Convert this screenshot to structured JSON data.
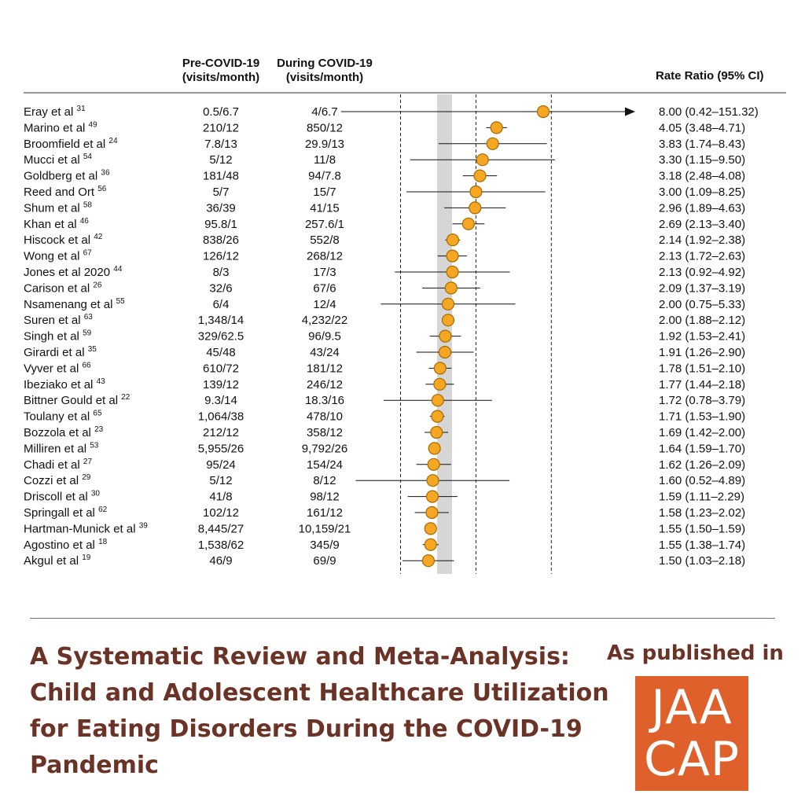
{
  "chart_data": {
    "type": "forest",
    "headers": {
      "pre_line1": "Pre-COVID-19",
      "pre_line2": "(visits/month)",
      "during_line1": "During COVID-19",
      "during_line2": "(visits/month)",
      "ratio": "Rate Ratio (95% CI)"
    },
    "x_axis": "log",
    "rows": [
      {
        "study": "Eray et al",
        "ref": "31",
        "pre": "0.5/6.7",
        "during": "4/6.7",
        "rr": 8.0,
        "lo": 0.42,
        "hi": 151.32,
        "ci_text": "8.00 (0.42–151.32)",
        "arrow": true
      },
      {
        "study": "Marino et al",
        "ref": "49",
        "pre": "210/12",
        "during": "850/12",
        "rr": 4.05,
        "lo": 3.48,
        "hi": 4.71,
        "ci_text": "4.05 (3.48–4.71)"
      },
      {
        "study": "Broomfield et al",
        "ref": "24",
        "pre": "7.8/13",
        "during": "29.9/13",
        "rr": 3.83,
        "lo": 1.74,
        "hi": 8.43,
        "ci_text": "3.83 (1.74–8.43)"
      },
      {
        "study": "Mucci et al",
        "ref": "54",
        "pre": "5/12",
        "during": "11/8",
        "rr": 3.3,
        "lo": 1.15,
        "hi": 9.5,
        "ci_text": "3.30 (1.15–9.50)"
      },
      {
        "study": "Goldberg et al",
        "ref": "36",
        "pre": "181/48",
        "during": "94/7.8",
        "rr": 3.18,
        "lo": 2.48,
        "hi": 4.08,
        "ci_text": "3.18 (2.48–4.08)"
      },
      {
        "study": "Reed and Ort",
        "ref": "56",
        "pre": "5/7",
        "during": "15/7",
        "rr": 3.0,
        "lo": 1.09,
        "hi": 8.25,
        "ci_text": "3.00 (1.09–8.25)"
      },
      {
        "study": "Shum et al",
        "ref": "58",
        "pre": "36/39",
        "during": "41/15",
        "rr": 2.96,
        "lo": 1.89,
        "hi": 4.63,
        "ci_text": "2.96 (1.89–4.63)"
      },
      {
        "study": "Khan et al",
        "ref": "46",
        "pre": "95.8/1",
        "during": "257.6/1",
        "rr": 2.69,
        "lo": 2.13,
        "hi": 3.4,
        "ci_text": "2.69 (2.13–3.40)"
      },
      {
        "study": "Hiscock et al",
        "ref": "42",
        "pre": "838/26",
        "during": "552/8",
        "rr": 2.14,
        "lo": 1.92,
        "hi": 2.38,
        "ci_text": "2.14 (1.92–2.38)"
      },
      {
        "study": "Wong et al",
        "ref": "67",
        "pre": "126/12",
        "during": "268/12",
        "rr": 2.13,
        "lo": 1.72,
        "hi": 2.63,
        "ci_text": "2.13 (1.72–2.63)"
      },
      {
        "study": "Jones et al 2020",
        "ref": "44",
        "pre": "8/3",
        "during": "17/3",
        "rr": 2.13,
        "lo": 0.92,
        "hi": 4.92,
        "ci_text": "2.13 (0.92–4.92)"
      },
      {
        "study": "Carison et al",
        "ref": "26",
        "pre": "32/6",
        "during": "67/6",
        "rr": 2.09,
        "lo": 1.37,
        "hi": 3.19,
        "ci_text": "2.09 (1.37–3.19)"
      },
      {
        "study": "Nsamenang et al",
        "ref": "55",
        "pre": "6/4",
        "during": "12/4",
        "rr": 2.0,
        "lo": 0.75,
        "hi": 5.33,
        "ci_text": "2.00 (0.75–5.33)"
      },
      {
        "study": "Suren et al",
        "ref": "63",
        "pre": "1,348/14",
        "during": "4,232/22",
        "rr": 2.0,
        "lo": 1.88,
        "hi": 2.12,
        "ci_text": "2.00 (1.88–2.12)"
      },
      {
        "study": "Singh et al",
        "ref": "59",
        "pre": "329/62.5",
        "during": "96/9.5",
        "rr": 1.92,
        "lo": 1.53,
        "hi": 2.41,
        "ci_text": "1.92 (1.53–2.41)"
      },
      {
        "study": "Girardi et al",
        "ref": "35",
        "pre": "45/48",
        "during": "43/24",
        "rr": 1.91,
        "lo": 1.26,
        "hi": 2.9,
        "ci_text": "1.91 (1.26–2.90)"
      },
      {
        "study": "Vyver et al",
        "ref": "66",
        "pre": "610/72",
        "during": "181/12",
        "rr": 1.78,
        "lo": 1.51,
        "hi": 2.1,
        "ci_text": "1.78 (1.51–2.10)"
      },
      {
        "study": "Ibeziako et al",
        "ref": "43",
        "pre": "139/12",
        "during": "246/12",
        "rr": 1.77,
        "lo": 1.44,
        "hi": 2.18,
        "ci_text": "1.77 (1.44–2.18)"
      },
      {
        "study": "Bittner Gould et al",
        "ref": "22",
        "pre": "9.3/14",
        "during": "18.3/16",
        "rr": 1.72,
        "lo": 0.78,
        "hi": 3.79,
        "ci_text": "1.72 (0.78–3.79)"
      },
      {
        "study": "Toulany et al",
        "ref": "65",
        "pre": "1,064/38",
        "during": "478/10",
        "rr": 1.71,
        "lo": 1.53,
        "hi": 1.9,
        "ci_text": "1.71 (1.53–1.90)"
      },
      {
        "study": "Bozzola et al",
        "ref": "23",
        "pre": "212/12",
        "during": "358/12",
        "rr": 1.69,
        "lo": 1.42,
        "hi": 2.0,
        "ci_text": "1.69 (1.42–2.00)"
      },
      {
        "study": "Milliren et al",
        "ref": "53",
        "pre": "5,955/26",
        "during": "9,792/26",
        "rr": 1.64,
        "lo": 1.59,
        "hi": 1.7,
        "ci_text": "1.64 (1.59–1.70)"
      },
      {
        "study": "Chadi et al",
        "ref": "27",
        "pre": "95/24",
        "during": "154/24",
        "rr": 1.62,
        "lo": 1.26,
        "hi": 2.09,
        "ci_text": "1.62 (1.26–2.09)"
      },
      {
        "study": "Cozzi et al",
        "ref": "29",
        "pre": "5/12",
        "during": "8/12",
        "rr": 1.6,
        "lo": 0.52,
        "hi": 4.89,
        "ci_text": "1.60 (0.52–4.89)"
      },
      {
        "study": "Driscoll et al",
        "ref": "30",
        "pre": "41/8",
        "during": "98/12",
        "rr": 1.59,
        "lo": 1.11,
        "hi": 2.29,
        "ci_text": "1.59 (1.11–2.29)"
      },
      {
        "study": "Springall et al",
        "ref": "62",
        "pre": "102/12",
        "during": "161/12",
        "rr": 1.58,
        "lo": 1.23,
        "hi": 2.02,
        "ci_text": "1.58 (1.23–2.02)"
      },
      {
        "study": "Hartman-Munick et al",
        "ref": "39",
        "pre": "8,445/27",
        "during": "10,159/21",
        "rr": 1.55,
        "lo": 1.5,
        "hi": 1.59,
        "ci_text": "1.55 (1.50–1.59)"
      },
      {
        "study": "Agostino et al",
        "ref": "18",
        "pre": "1,538/62",
        "during": "345/9",
        "rr": 1.55,
        "lo": 1.38,
        "hi": 1.74,
        "ci_text": "1.55 (1.38–1.74)"
      },
      {
        "study": "Akgul et al",
        "ref": "19",
        "pre": "46/9",
        "during": "69/9",
        "rr": 1.5,
        "lo": 1.03,
        "hi": 2.18,
        "ci_text": "1.50 (1.03–2.18)"
      }
    ],
    "colors": {
      "marker_fill": "#f5a623",
      "marker_stroke": "#a86a00",
      "null_band": "#d6d6d6"
    }
  },
  "footer": {
    "title_line1": "A Systematic Review and Meta-Analysis:",
    "title_line2": "Child and Adolescent Healthcare Utilization",
    "title_line3": "for Eating Disorders During the COVID-19",
    "title_line4": "Pandemic",
    "published": "As published in",
    "logo_line1": "JAA",
    "logo_line2": "CAP",
    "text_color": "#6b3226",
    "logo_color": "#e0602b"
  }
}
